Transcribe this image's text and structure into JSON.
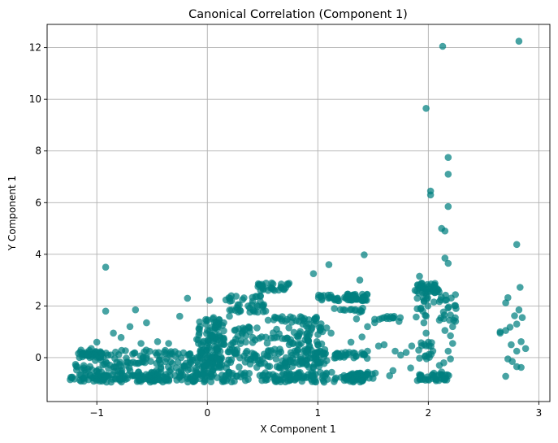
{
  "chart_data": {
    "type": "scatter",
    "title": "Canonical Correlation (Component 1)",
    "xlabel": "X Component 1",
    "ylabel": "Y Component 1",
    "xlim": [
      -1.45,
      3.1
    ],
    "ylim": [
      -1.7,
      12.9
    ],
    "xticks": [
      -1,
      0,
      1,
      2,
      3
    ],
    "xtick_labels": [
      "−1",
      "0",
      "1",
      "2",
      "3"
    ],
    "yticks": [
      0,
      2,
      4,
      6,
      8,
      10,
      12
    ],
    "ytick_labels": [
      "0",
      "2",
      "4",
      "6",
      "8",
      "10",
      "12"
    ],
    "grid": true,
    "marker_color": "#008080",
    "marker_alpha": 0.72,
    "points": [
      [
        2.82,
        12.25
      ],
      [
        2.13,
        12.05
      ],
      [
        1.98,
        9.65
      ],
      [
        2.18,
        7.75
      ],
      [
        2.18,
        7.1
      ],
      [
        2.02,
        6.45
      ],
      [
        2.02,
        6.3
      ],
      [
        2.18,
        5.85
      ],
      [
        2.12,
        5.0
      ],
      [
        2.15,
        4.9
      ],
      [
        2.8,
        4.38
      ],
      [
        1.42,
        3.98
      ],
      [
        2.15,
        3.85
      ],
      [
        2.18,
        3.65
      ],
      [
        1.1,
        3.6
      ],
      [
        -0.92,
        3.5
      ],
      [
        0.96,
        3.25
      ],
      [
        1.92,
        3.15
      ],
      [
        2.83,
        2.72
      ],
      [
        1.38,
        3.0
      ],
      [
        2.72,
        2.32
      ],
      [
        2.7,
        2.12
      ],
      [
        2.82,
        1.85
      ],
      [
        2.78,
        1.62
      ],
      [
        2.85,
        1.55
      ],
      [
        2.8,
        1.3
      ],
      [
        2.74,
        1.18
      ],
      [
        2.7,
        1.05
      ],
      [
        2.65,
        0.95
      ],
      [
        2.84,
        0.62
      ],
      [
        2.75,
        0.5
      ],
      [
        2.88,
        0.35
      ],
      [
        2.8,
        0.25
      ],
      [
        2.72,
        -0.05
      ],
      [
        2.76,
        -0.15
      ],
      [
        2.8,
        -0.35
      ],
      [
        2.84,
        -0.38
      ],
      [
        2.7,
        -0.72
      ],
      [
        2.65,
        1.0
      ],
      [
        -0.92,
        1.8
      ],
      [
        -0.65,
        1.85
      ],
      [
        -0.18,
        2.3
      ],
      [
        0.02,
        2.22
      ],
      [
        -0.25,
        1.6
      ],
      [
        -0.55,
        1.35
      ],
      [
        -0.7,
        1.2
      ],
      [
        -0.85,
        0.95
      ],
      [
        -0.78,
        0.78
      ],
      [
        -0.6,
        0.55
      ],
      [
        -1.0,
        0.6
      ],
      [
        -1.05,
        0.35
      ],
      [
        -1.15,
        0.22
      ],
      [
        -0.45,
        0.62
      ],
      [
        -0.35,
        0.55
      ],
      [
        0.05,
        1.5
      ],
      [
        0.1,
        1.35
      ],
      [
        0.2,
        1.6
      ],
      [
        0.3,
        1.8
      ],
      [
        0.45,
        1.15
      ],
      [
        0.55,
        1.45
      ],
      [
        0.65,
        0.92
      ],
      [
        0.75,
        0.6
      ],
      [
        0.85,
        0.55
      ],
      [
        0.9,
        0.78
      ],
      [
        1.15,
        1.9
      ],
      [
        1.35,
        1.5
      ],
      [
        1.45,
        1.2
      ],
      [
        1.6,
        1.55
      ],
      [
        1.55,
        0.45
      ],
      [
        1.6,
        0.5
      ],
      [
        1.7,
        0.25
      ],
      [
        1.75,
        0.1
      ],
      [
        1.8,
        0.2
      ],
      [
        1.65,
        -0.7
      ],
      [
        1.68,
        -0.5
      ],
      [
        1.9,
        2.3
      ],
      [
        1.95,
        1.8
      ],
      [
        1.96,
        1.35
      ],
      [
        1.98,
        0.95
      ],
      [
        2.0,
        0.6
      ],
      [
        1.97,
        0.05
      ],
      [
        2.05,
        -0.6
      ],
      [
        2.1,
        1.45
      ],
      [
        2.15,
        1.05
      ],
      [
        2.2,
        0.85
      ],
      [
        2.22,
        0.55
      ],
      [
        2.18,
        0.25
      ],
      [
        2.2,
        -0.05
      ],
      [
        2.14,
        -0.2
      ],
      [
        2.1,
        -0.3
      ],
      [
        2.12,
        -0.55
      ],
      [
        2.22,
        1.2
      ],
      [
        2.25,
        1.9
      ],
      [
        2.2,
        1.65
      ],
      [
        2.05,
        2.15
      ],
      [
        1.88,
        2.6
      ],
      [
        0.5,
        1.95
      ],
      [
        0.35,
        0.85
      ],
      [
        0.15,
        0.7
      ],
      [
        1.25,
        0.2
      ],
      [
        1.3,
        0.6
      ],
      [
        1.4,
        0.8
      ],
      [
        1.5,
        -0.8
      ],
      [
        1.52,
        -0.6
      ],
      [
        1.45,
        0.25
      ],
      [
        1.85,
        0.45
      ],
      [
        1.84,
        -0.4
      ],
      [
        1.12,
        0.95
      ],
      [
        1.08,
        1.15
      ]
    ],
    "bands": [
      [
        -1.25,
        -0.15,
        -0.95,
        -0.65,
        130
      ],
      [
        -1.2,
        0.1,
        -0.6,
        0.3,
        170
      ],
      [
        -1.15,
        -0.95,
        0.0,
        0.25,
        30
      ],
      [
        -0.15,
        1.5,
        -0.95,
        -0.55,
        170
      ],
      [
        -0.1,
        1.1,
        -0.4,
        0.35,
        160
      ],
      [
        -0.1,
        0.15,
        0.3,
        1.6,
        70
      ],
      [
        0.15,
        0.75,
        0.5,
        1.25,
        40
      ],
      [
        0.15,
        0.55,
        1.75,
        2.4,
        40
      ],
      [
        0.45,
        0.75,
        2.6,
        2.9,
        30
      ],
      [
        0.55,
        1.0,
        1.4,
        1.6,
        25
      ],
      [
        0.75,
        1.05,
        -0.3,
        1.4,
        60
      ],
      [
        1.0,
        1.35,
        2.2,
        2.45,
        30
      ],
      [
        1.15,
        1.45,
        -0.05,
        0.2,
        30
      ],
      [
        1.2,
        1.45,
        1.7,
        1.95,
        12
      ],
      [
        1.25,
        1.45,
        2.2,
        2.5,
        30
      ],
      [
        1.25,
        1.5,
        -0.95,
        -0.6,
        25
      ],
      [
        1.5,
        1.75,
        1.35,
        1.6,
        14
      ],
      [
        1.9,
        2.2,
        -0.9,
        -0.65,
        35
      ],
      [
        1.9,
        2.1,
        2.5,
        2.9,
        35
      ],
      [
        1.88,
        2.0,
        1.5,
        2.6,
        15
      ],
      [
        2.1,
        2.25,
        1.4,
        2.45,
        20
      ],
      [
        1.9,
        2.05,
        -0.1,
        0.6,
        15
      ]
    ]
  }
}
